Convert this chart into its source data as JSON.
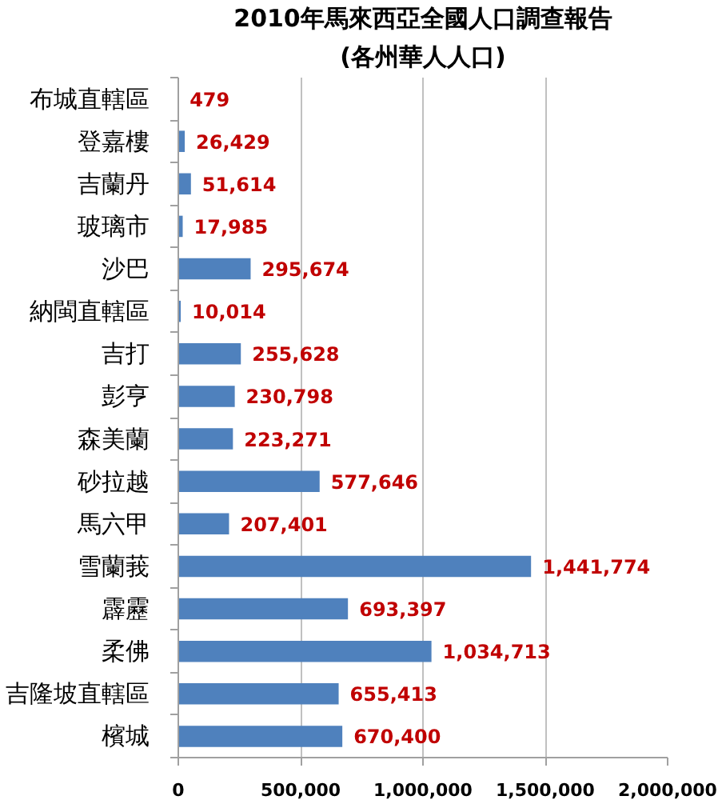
{
  "chart_data": {
    "type": "bar",
    "title": "2010年馬來西亞全國人口調查報告",
    "subtitle": "(各州華人人口)",
    "orientation": "horizontal",
    "categories": [
      "布城直轄區",
      "登嘉樓",
      "吉蘭丹",
      "玻璃市",
      "沙巴",
      "納閩直轄區",
      "吉打",
      "彭亨",
      "森美蘭",
      "砂拉越",
      "馬六甲",
      "雪蘭莪",
      "霹靂",
      "柔佛",
      "吉隆坡直轄區",
      "檳城"
    ],
    "values": [
      479,
      26429,
      51614,
      17985,
      295674,
      10014,
      255628,
      230798,
      223271,
      577646,
      207401,
      1441774,
      693397,
      1034713,
      655413,
      670400
    ],
    "value_labels": [
      "479",
      "26,429",
      "51,614",
      "17,985",
      "295,674",
      "10,014",
      "255,628",
      "230,798",
      "223,271",
      "577,646",
      "207,401",
      "1,441,774",
      "693,397",
      "1,034,713",
      "655,413",
      "670,400"
    ],
    "color": "#4f81bd",
    "xlim": [
      0,
      2000000
    ],
    "xticks": [
      0,
      {
        "value": 500000,
        "label": "500,000"
      },
      {
        "value": 1000000,
        "label": "1,000,000"
      },
      {
        "value": 1500000,
        "label": "1,500,000"
      },
      {
        "value": 2000000,
        "label": "2,000,000"
      }
    ],
    "grid": "x"
  }
}
